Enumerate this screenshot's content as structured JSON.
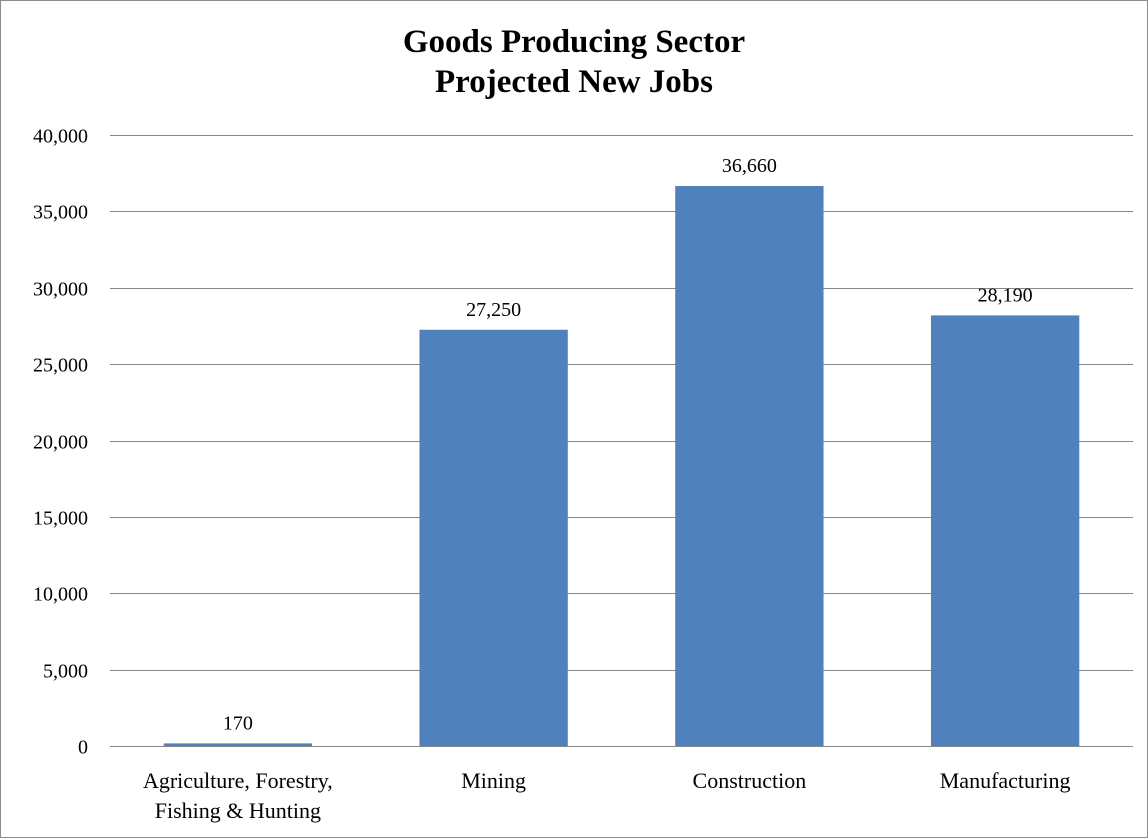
{
  "chart_data": {
    "type": "bar",
    "title_lines": [
      "Goods Producing Sector",
      "Projected New Jobs"
    ],
    "categories": [
      [
        "Agriculture, Forestry,",
        "Fishing & Hunting"
      ],
      [
        "Mining"
      ],
      [
        "Construction"
      ],
      [
        "Manufacturing"
      ]
    ],
    "values": [
      170,
      27250,
      36660,
      28190
    ],
    "value_labels": [
      "170",
      "27,250",
      "36,660",
      "28,190"
    ],
    "ylim": [
      0,
      40000
    ],
    "y_ticks": [
      0,
      5000,
      10000,
      15000,
      20000,
      25000,
      30000,
      35000,
      40000
    ],
    "y_tick_labels": [
      "0",
      "5,000",
      "10,000",
      "15,000",
      "20,000",
      "25,000",
      "30,000",
      "35,000",
      "40,000"
    ],
    "grid": true,
    "legend": "none",
    "bar_color": "#4f81bd",
    "grid_color": "#868686"
  }
}
